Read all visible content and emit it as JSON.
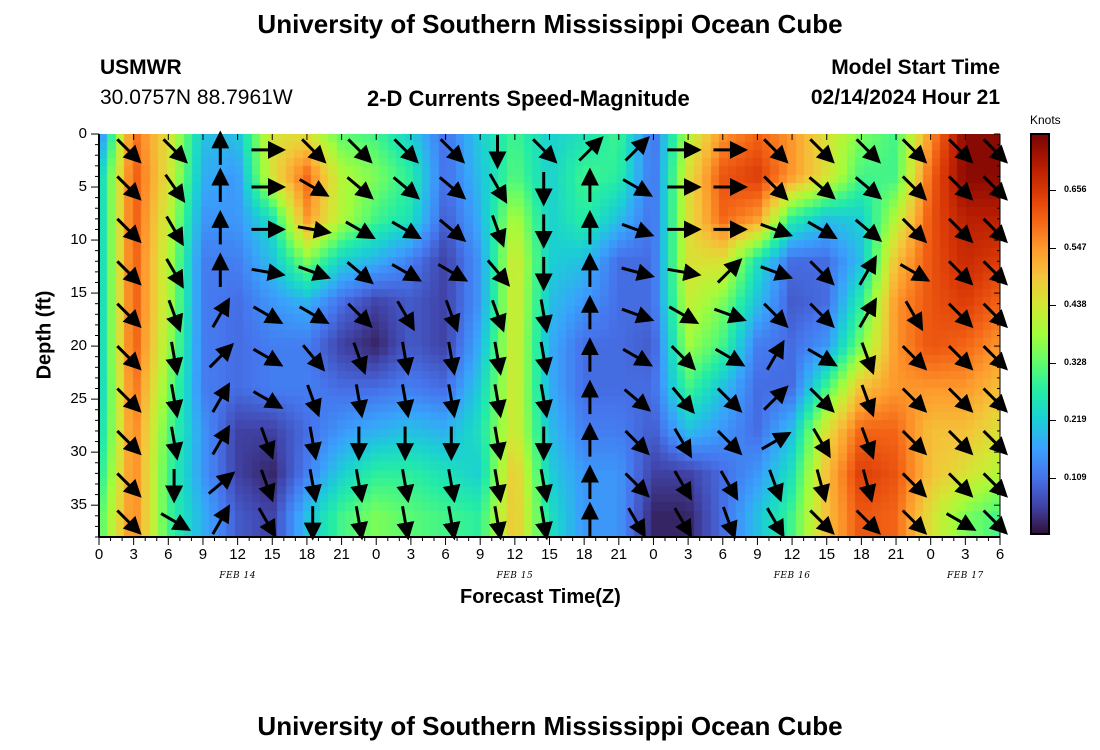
{
  "header": {
    "title": "University of Southern Mississippi Ocean Cube",
    "station": "USMWR",
    "coords": "30.0757N  88.7961W",
    "subtitle": "2-D Currents Speed-Magnitude",
    "model_start_label": "Model Start Time",
    "model_start_value": "02/14/2024 Hour 21"
  },
  "footer": {
    "title": "University of Southern Mississippi Ocean Cube"
  },
  "chart_data": {
    "type": "heatmap",
    "title": "2-D Currents Speed-Magnitude",
    "xlabel": "Forecast Time(Z)",
    "ylabel": "Depth (ft)",
    "x_ticks": [
      "0",
      "3",
      "6",
      "9",
      "12",
      "15",
      "18",
      "21",
      "0",
      "3",
      "6",
      "9",
      "12",
      "15",
      "18",
      "21",
      "0",
      "3",
      "6",
      "9",
      "12",
      "15",
      "18",
      "21",
      "0",
      "3",
      "6"
    ],
    "x_range_hours": [
      0,
      78
    ],
    "date_labels": [
      {
        "text": "FEB 14",
        "hour": 12
      },
      {
        "text": "FEB 15",
        "hour": 36
      },
      {
        "text": "FEB 16",
        "hour": 60
      },
      {
        "text": "FEB 17",
        "hour": 75
      }
    ],
    "y_ticks": [
      "0",
      "5",
      "10",
      "15",
      "20",
      "25",
      "30",
      "35"
    ],
    "y_range_ft": [
      0,
      38
    ],
    "y_inverted": true,
    "colorbar": {
      "unit": "Knots",
      "labels": [
        "0.656",
        "0.547",
        "0.438",
        "0.328",
        "0.219",
        "0.109"
      ],
      "values": [
        0.656,
        0.547,
        0.438,
        0.328,
        0.219,
        0.109
      ],
      "range": [
        0.0,
        0.765
      ],
      "colormap": "turbo",
      "colors": [
        "#30123b",
        "#4145ab",
        "#4675ed",
        "#39a2fc",
        "#1bcfd4",
        "#24eca6",
        "#61fc6c",
        "#a4fc3b",
        "#d1e834",
        "#f3c63a",
        "#fe9b2d",
        "#f36315",
        "#d93806",
        "#b11901",
        "#7a0402"
      ]
    },
    "hours": [
      0,
      3,
      6,
      9,
      12,
      15,
      18,
      21,
      24,
      27,
      30,
      33,
      36,
      39,
      42,
      45,
      48,
      51,
      54,
      57,
      60,
      63,
      66,
      69,
      72,
      75,
      78
    ],
    "depths": [
      0,
      4,
      8,
      12,
      16,
      20,
      24,
      28,
      32,
      36
    ],
    "speed_grid": [
      [
        0.1,
        0.6,
        0.45,
        0.2,
        0.2,
        0.45,
        0.45,
        0.32,
        0.3,
        0.22,
        0.1,
        0.22,
        0.3,
        0.22,
        0.25,
        0.3,
        0.1,
        0.4,
        0.55,
        0.6,
        0.55,
        0.45,
        0.35,
        0.3,
        0.55,
        0.75,
        0.75
      ],
      [
        0.2,
        0.62,
        0.45,
        0.18,
        0.15,
        0.45,
        0.6,
        0.4,
        0.35,
        0.28,
        0.1,
        0.2,
        0.32,
        0.22,
        0.3,
        0.28,
        0.1,
        0.45,
        0.62,
        0.65,
        0.55,
        0.45,
        0.3,
        0.3,
        0.6,
        0.75,
        0.75
      ],
      [
        0.2,
        0.62,
        0.42,
        0.15,
        0.15,
        0.25,
        0.55,
        0.4,
        0.3,
        0.25,
        0.08,
        0.18,
        0.4,
        0.22,
        0.28,
        0.2,
        0.1,
        0.45,
        0.6,
        0.55,
        0.28,
        0.2,
        0.22,
        0.4,
        0.62,
        0.7,
        0.7
      ],
      [
        0.2,
        0.62,
        0.4,
        0.12,
        0.12,
        0.2,
        0.35,
        0.22,
        0.18,
        0.12,
        0.05,
        0.15,
        0.45,
        0.22,
        0.2,
        0.1,
        0.1,
        0.45,
        0.45,
        0.25,
        0.1,
        0.1,
        0.2,
        0.5,
        0.62,
        0.68,
        0.65
      ],
      [
        0.2,
        0.62,
        0.4,
        0.12,
        0.1,
        0.15,
        0.18,
        0.1,
        0.05,
        0.08,
        0.05,
        0.15,
        0.45,
        0.2,
        0.15,
        0.1,
        0.1,
        0.42,
        0.35,
        0.2,
        0.08,
        0.1,
        0.28,
        0.55,
        0.62,
        0.65,
        0.6
      ],
      [
        0.2,
        0.62,
        0.38,
        0.12,
        0.1,
        0.12,
        0.12,
        0.05,
        0.02,
        0.08,
        0.05,
        0.18,
        0.45,
        0.18,
        0.1,
        0.1,
        0.08,
        0.38,
        0.3,
        0.12,
        0.1,
        0.15,
        0.35,
        0.55,
        0.62,
        0.6,
        0.55
      ],
      [
        0.2,
        0.6,
        0.35,
        0.12,
        0.1,
        0.12,
        0.12,
        0.1,
        0.1,
        0.12,
        0.1,
        0.22,
        0.45,
        0.18,
        0.1,
        0.1,
        0.1,
        0.3,
        0.2,
        0.1,
        0.1,
        0.3,
        0.5,
        0.55,
        0.55,
        0.55,
        0.5
      ],
      [
        0.22,
        0.58,
        0.32,
        0.15,
        0.05,
        0.05,
        0.1,
        0.15,
        0.18,
        0.2,
        0.18,
        0.25,
        0.45,
        0.2,
        0.12,
        0.12,
        0.08,
        0.2,
        0.15,
        0.1,
        0.2,
        0.45,
        0.6,
        0.6,
        0.5,
        0.5,
        0.45
      ],
      [
        0.25,
        0.58,
        0.3,
        0.15,
        0.05,
        0.02,
        0.12,
        0.22,
        0.28,
        0.28,
        0.25,
        0.22,
        0.5,
        0.22,
        0.15,
        0.15,
        0.05,
        0.05,
        0.1,
        0.15,
        0.25,
        0.5,
        0.65,
        0.62,
        0.5,
        0.45,
        0.4
      ],
      [
        0.3,
        0.58,
        0.3,
        0.18,
        0.08,
        0.05,
        0.2,
        0.3,
        0.35,
        0.32,
        0.3,
        0.28,
        0.5,
        0.25,
        0.15,
        0.15,
        0.02,
        0.02,
        0.1,
        0.2,
        0.3,
        0.5,
        0.62,
        0.6,
        0.45,
        0.35,
        0.3
      ]
    ],
    "arrow_hours": [
      2.5,
      6.5,
      10.5,
      14.5,
      18.5,
      22.5,
      26.5,
      30.5,
      34.5,
      38.5,
      42.5,
      46.5,
      50.5,
      54.5,
      58.5,
      62.5,
      66.5,
      70.5,
      74.5,
      77.5
    ],
    "arrow_depths": [
      1.5,
      5,
      9,
      13,
      17,
      21,
      25,
      29,
      33,
      36.5
    ],
    "arrow_directions_deg": [
      [
        135,
        135,
        0,
        90,
        135,
        135,
        135,
        135,
        180,
        135,
        45,
        45,
        90,
        90,
        135,
        135,
        135,
        135,
        135,
        135
      ],
      [
        135,
        145,
        0,
        90,
        120,
        130,
        130,
        130,
        150,
        180,
        0,
        120,
        90,
        90,
        135,
        130,
        130,
        135,
        135,
        135
      ],
      [
        135,
        150,
        0,
        90,
        100,
        120,
        120,
        130,
        160,
        180,
        0,
        110,
        90,
        90,
        110,
        120,
        130,
        135,
        135,
        135
      ],
      [
        135,
        150,
        0,
        100,
        110,
        130,
        120,
        120,
        140,
        180,
        0,
        105,
        100,
        45,
        110,
        135,
        30,
        120,
        135,
        135
      ],
      [
        135,
        160,
        30,
        120,
        120,
        135,
        150,
        160,
        160,
        170,
        0,
        110,
        120,
        110,
        135,
        135,
        30,
        150,
        135,
        135
      ],
      [
        135,
        170,
        45,
        120,
        140,
        160,
        170,
        170,
        170,
        170,
        0,
        120,
        135,
        120,
        30,
        120,
        160,
        135,
        135,
        135
      ],
      [
        135,
        170,
        30,
        120,
        160,
        170,
        170,
        170,
        170,
        170,
        0,
        130,
        140,
        135,
        45,
        135,
        160,
        135,
        135,
        135
      ],
      [
        135,
        170,
        30,
        160,
        170,
        180,
        180,
        180,
        170,
        180,
        0,
        135,
        150,
        135,
        60,
        150,
        160,
        135,
        135,
        135
      ],
      [
        135,
        180,
        50,
        160,
        170,
        170,
        170,
        170,
        170,
        170,
        0,
        135,
        150,
        150,
        160,
        165,
        165,
        135,
        135,
        135
      ],
      [
        135,
        120,
        30,
        150,
        180,
        170,
        170,
        170,
        170,
        170,
        0,
        150,
        150,
        160,
        150,
        135,
        135,
        135,
        120,
        135
      ]
    ]
  }
}
